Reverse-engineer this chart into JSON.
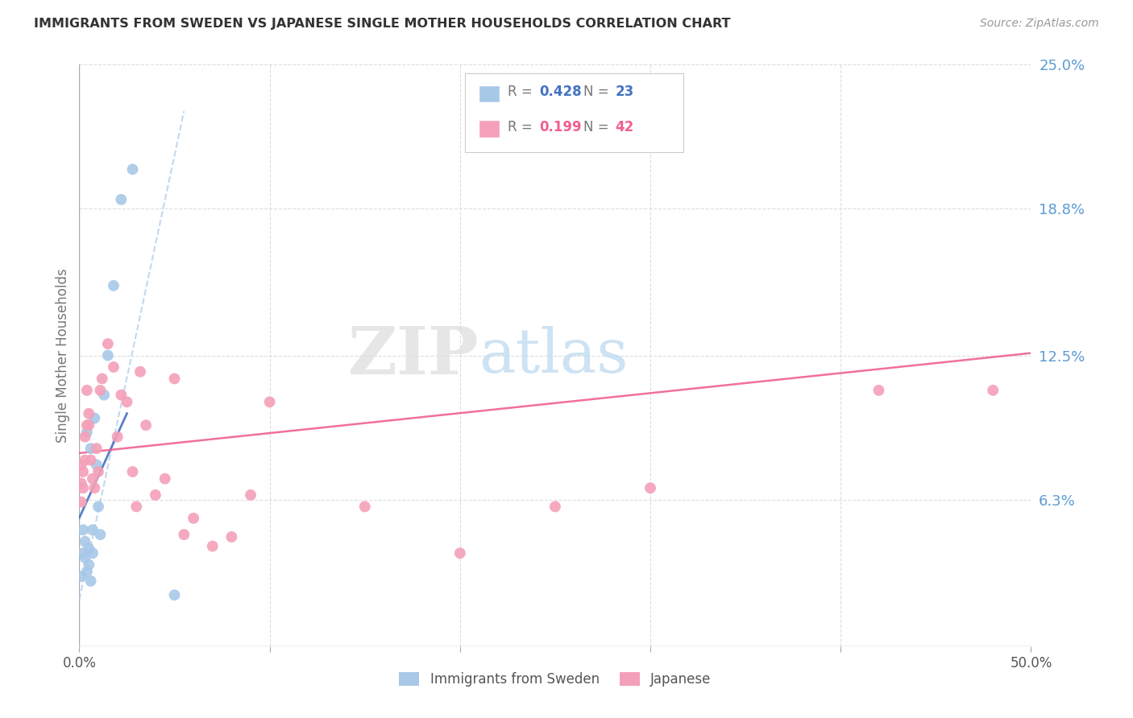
{
  "title": "IMMIGRANTS FROM SWEDEN VS JAPANESE SINGLE MOTHER HOUSEHOLDS CORRELATION CHART",
  "source": "Source: ZipAtlas.com",
  "ylabel": "Single Mother Households",
  "xlim": [
    0.0,
    0.5
  ],
  "ylim": [
    0.0,
    0.25
  ],
  "xtick_vals": [
    0.0,
    0.1,
    0.2,
    0.3,
    0.4,
    0.5
  ],
  "xtick_labels": [
    "0.0%",
    "",
    "",
    "",
    "",
    "50.0%"
  ],
  "ytick_labels_right": [
    "6.3%",
    "12.5%",
    "18.8%",
    "25.0%"
  ],
  "yticks_right": [
    0.063,
    0.125,
    0.188,
    0.25
  ],
  "color_blue": "#a8c8e8",
  "color_pink": "#f4a0b8",
  "color_blue_line": "#4472c4",
  "color_pink_line": "#f06090",
  "color_right_labels": "#5b9bd5",
  "blue_scatter_x": [
    0.001,
    0.002,
    0.002,
    0.003,
    0.003,
    0.004,
    0.004,
    0.005,
    0.005,
    0.006,
    0.006,
    0.007,
    0.007,
    0.008,
    0.009,
    0.01,
    0.011,
    0.013,
    0.015,
    0.018,
    0.022,
    0.028,
    0.05
  ],
  "blue_scatter_y": [
    0.03,
    0.04,
    0.05,
    0.038,
    0.045,
    0.032,
    0.092,
    0.035,
    0.042,
    0.028,
    0.085,
    0.04,
    0.05,
    0.098,
    0.078,
    0.06,
    0.048,
    0.108,
    0.125,
    0.155,
    0.192,
    0.205,
    0.022
  ],
  "pink_scatter_x": [
    0.001,
    0.001,
    0.001,
    0.002,
    0.002,
    0.003,
    0.003,
    0.004,
    0.004,
    0.005,
    0.005,
    0.006,
    0.007,
    0.008,
    0.009,
    0.01,
    0.011,
    0.012,
    0.015,
    0.018,
    0.02,
    0.022,
    0.025,
    0.028,
    0.03,
    0.032,
    0.035,
    0.04,
    0.045,
    0.05,
    0.055,
    0.06,
    0.07,
    0.08,
    0.09,
    0.1,
    0.15,
    0.2,
    0.25,
    0.3,
    0.42,
    0.48
  ],
  "pink_scatter_y": [
    0.062,
    0.07,
    0.078,
    0.068,
    0.075,
    0.08,
    0.09,
    0.095,
    0.11,
    0.1,
    0.095,
    0.08,
    0.072,
    0.068,
    0.085,
    0.075,
    0.11,
    0.115,
    0.13,
    0.12,
    0.09,
    0.108,
    0.105,
    0.075,
    0.06,
    0.118,
    0.095,
    0.065,
    0.072,
    0.115,
    0.048,
    0.055,
    0.043,
    0.047,
    0.065,
    0.105,
    0.06,
    0.04,
    0.06,
    0.068,
    0.11,
    0.11
  ],
  "blue_trend_x0": 0.0,
  "blue_trend_x1": 0.055,
  "blue_trend_y0": 0.02,
  "blue_trend_y1": 0.23,
  "pink_trend_x0": 0.0,
  "pink_trend_x1": 0.5,
  "pink_trend_y0": 0.083,
  "pink_trend_y1": 0.126
}
